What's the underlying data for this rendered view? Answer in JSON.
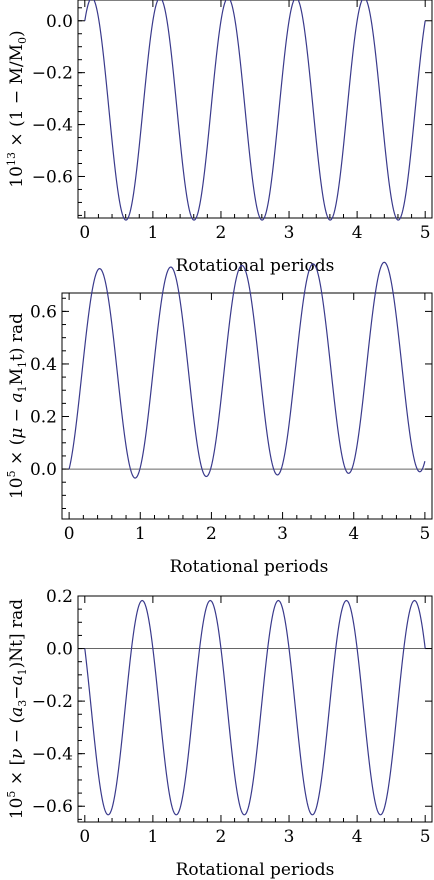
{
  "chart_data": [
    {
      "type": "line",
      "xlabel": "Rotational periods",
      "ylabel": "10^13 × (1 − M/M_0)",
      "xlim": [
        -0.1,
        5.1
      ],
      "ylim": [
        -0.76,
        0.08
      ],
      "xticks": [
        "0",
        "1",
        "2",
        "3",
        "4",
        "5"
      ],
      "yticks": [
        "0.0",
        "−0.2",
        "−0.4",
        "−0.6"
      ],
      "ytick_values": [
        0.0,
        -0.2,
        -0.4,
        -0.6
      ],
      "zero_line": false,
      "series": [
        {
          "curve": "y = a + b*cos(2*pi*x) + c*sin(2*pi*x)",
          "a": -0.34,
          "b": 0.34,
          "c": 0.26,
          "x_range": [
            0,
            5
          ],
          "color": "#3a3a8c"
        }
      ]
    },
    {
      "type": "line",
      "xlabel": "Rotational periods",
      "ylabel": "10^5 × (μ − a_1 M_1 t) rad",
      "xlim": [
        -0.1,
        5.1
      ],
      "ylim": [
        -0.19,
        0.67
      ],
      "xticks": [
        "0",
        "1",
        "2",
        "3",
        "4",
        "5"
      ],
      "yticks": [
        "0.0",
        "0.2",
        "0.4",
        "0.6"
      ],
      "ytick_values": [
        0.0,
        0.2,
        0.4,
        0.6
      ],
      "zero_line": true,
      "series": [
        {
          "curve": "y = a - b*cos(2*pi*x + p)",
          "a": 0.215,
          "b": 0.4,
          "p": 0.45,
          "drift": 0.006,
          "x_range": [
            0,
            5
          ],
          "color": "#3a3a8c"
        }
      ]
    },
    {
      "type": "line",
      "xlabel": "Rotational periods",
      "ylabel": "10^5 × [ν − (a_3 − a_1)Nt] rad",
      "xlim": [
        -0.1,
        5.1
      ],
      "ylim": [
        -0.66,
        0.2
      ],
      "xticks": [
        "0",
        "1",
        "2",
        "3",
        "4",
        "5"
      ],
      "yticks": [
        "0.2",
        "0.0",
        "−0.2",
        "−0.4",
        "−0.6"
      ],
      "ytick_values": [
        0.2,
        0.0,
        -0.2,
        -0.4,
        -0.6
      ],
      "zero_line": true,
      "series": [
        {
          "curve": "y = a + b*cos(2*pi*x) + c*sin(2*pi*x)",
          "a": -0.225,
          "b": 0.225,
          "c": -0.34,
          "x_range": [
            0,
            5
          ],
          "color": "#3a3a8c"
        }
      ]
    }
  ]
}
